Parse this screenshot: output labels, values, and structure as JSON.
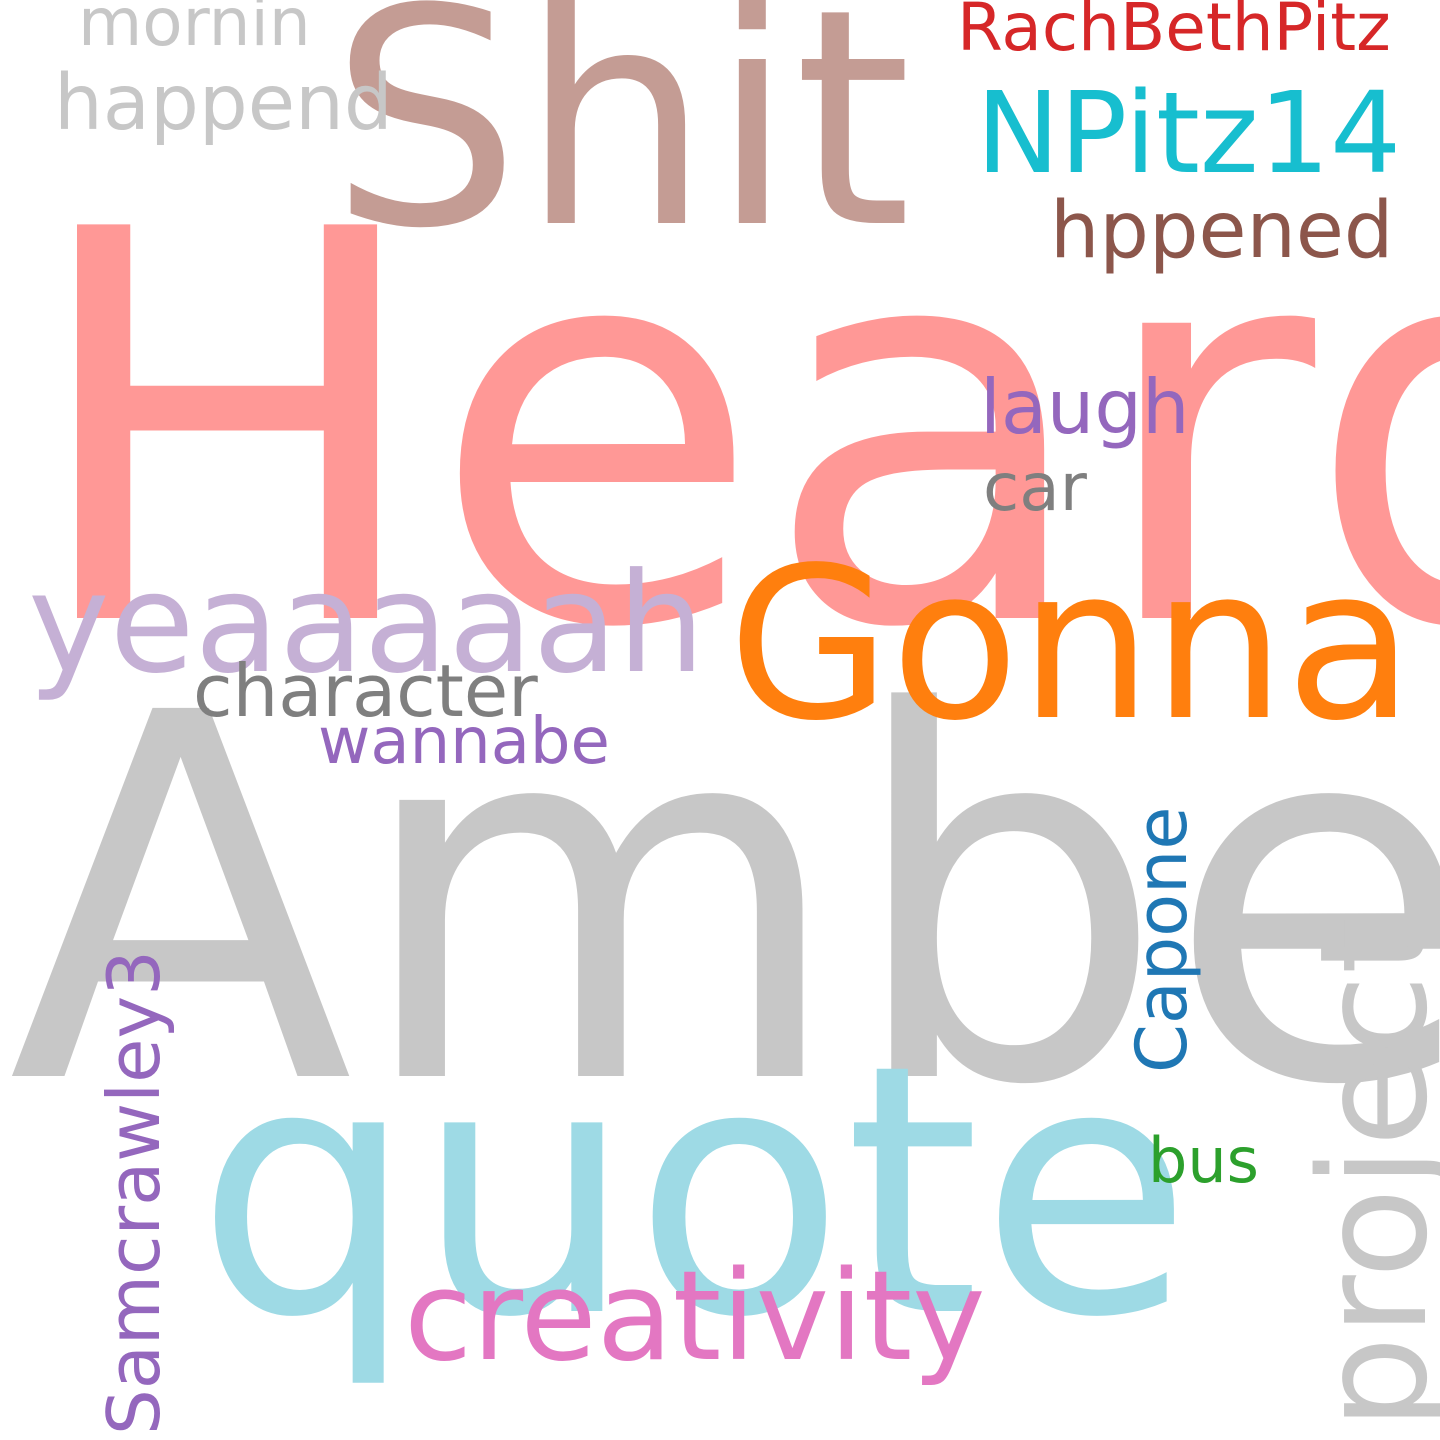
{
  "words": {
    "heard": {
      "text": "Heard",
      "color": "#ff9896"
    },
    "amber": {
      "text": "Amber",
      "color": "#c7c7c7"
    },
    "shit": {
      "text": "Shit",
      "color": "#c49c94"
    },
    "quote": {
      "text": "quote",
      "color": "#9edae5"
    },
    "gonna": {
      "text": "Gonna",
      "color": "#ff7f0e"
    },
    "yeaaaaah": {
      "text": "yeaaaaah",
      "color": "#c5b0d5"
    },
    "creativity": {
      "text": "creativity",
      "color": "#e377c2"
    },
    "project": {
      "text": "project",
      "color": "#c7c7c7"
    },
    "npitz14": {
      "text": "NPitz14",
      "color": "#17becf"
    },
    "rachbeth": {
      "text": "RachBethPitz",
      "color": "#d62728"
    },
    "mornin": {
      "text": "mornin",
      "color": "#c7c7c7"
    },
    "happend": {
      "text": "happend",
      "color": "#c7c7c7"
    },
    "hppened": {
      "text": "hppened",
      "color": "#8c564b"
    },
    "laugh": {
      "text": "laugh",
      "color": "#9467bd"
    },
    "car": {
      "text": "car",
      "color": "#7f7f7f"
    },
    "character": {
      "text": "character",
      "color": "#7f7f7f"
    },
    "wannabe": {
      "text": "wannabe",
      "color": "#9467bd"
    },
    "capone": {
      "text": "Capone",
      "color": "#1f77b4"
    },
    "bus": {
      "text": "bus",
      "color": "#2ca02c"
    },
    "samcrawley": {
      "text": "Samcrawley3",
      "color": "#9467bd"
    }
  }
}
